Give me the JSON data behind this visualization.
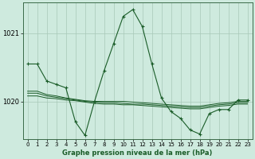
{
  "title": "Graphe pression niveau de la mer (hPa)",
  "bg_color": "#ceeade",
  "grid_color": "#a8c8b8",
  "line_color": "#1a5c28",
  "ylim": [
    1019.45,
    1021.45
  ],
  "yticks": [
    1020,
    1021
  ],
  "xticks": [
    0,
    1,
    2,
    3,
    4,
    5,
    6,
    7,
    8,
    9,
    10,
    11,
    12,
    13,
    14,
    15,
    16,
    17,
    18,
    19,
    20,
    21,
    22,
    23
  ],
  "main_series_x": [
    0,
    1,
    2,
    3,
    4,
    5,
    6,
    7,
    8,
    9,
    10,
    11,
    12,
    13,
    14,
    15,
    16,
    17,
    18,
    19,
    20,
    21,
    22,
    23
  ],
  "main_series_y": [
    1020.55,
    1020.55,
    1020.3,
    1020.25,
    1020.2,
    1019.7,
    1019.5,
    1020.0,
    1020.45,
    1020.85,
    1021.25,
    1021.35,
    1021.1,
    1020.55,
    1020.05,
    1019.85,
    1019.75,
    1019.58,
    1019.52,
    1019.82,
    1019.88,
    1019.88,
    1020.02,
    1020.02
  ],
  "flat_lines": [
    [
      1020.15,
      1020.15,
      1020.1,
      1020.08,
      1020.05,
      1020.03,
      1020.01,
      1020.0,
      1020.0,
      1020.0,
      1020.0,
      1019.99,
      1019.98,
      1019.97,
      1019.96,
      1019.95,
      1019.94,
      1019.93,
      1019.93,
      1019.95,
      1019.97,
      1019.98,
      1020.0,
      1020.0
    ],
    [
      1020.12,
      1020.12,
      1020.08,
      1020.06,
      1020.04,
      1020.02,
      1020.0,
      1019.99,
      1019.98,
      1019.98,
      1019.97,
      1019.96,
      1019.96,
      1019.95,
      1019.94,
      1019.93,
      1019.92,
      1019.91,
      1019.91,
      1019.93,
      1019.95,
      1019.96,
      1019.98,
      1019.98
    ],
    [
      1020.08,
      1020.08,
      1020.05,
      1020.04,
      1020.02,
      1020.01,
      1019.99,
      1019.97,
      1019.96,
      1019.96,
      1019.95,
      1019.95,
      1019.94,
      1019.93,
      1019.92,
      1019.91,
      1019.9,
      1019.89,
      1019.89,
      1019.91,
      1019.93,
      1019.94,
      1019.96,
      1019.96
    ]
  ]
}
